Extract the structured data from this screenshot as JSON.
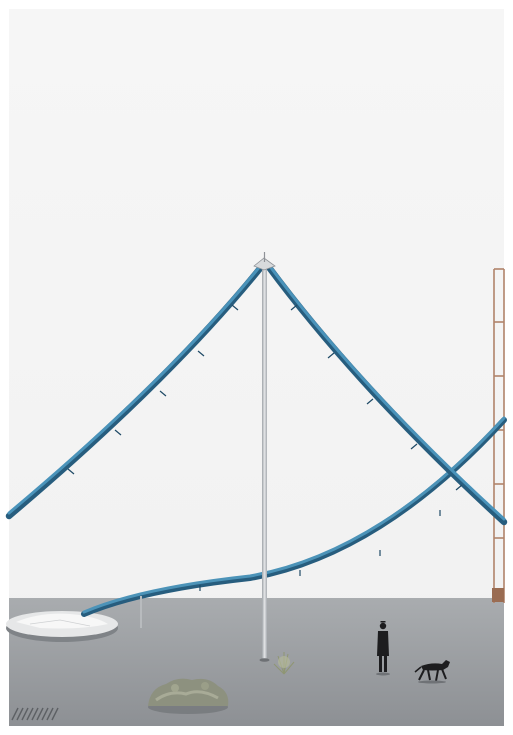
{
  "scene": {
    "subject": "architectural-model-photograph",
    "colors": {
      "backdrop": "#f3f3f3",
      "floor": "#9c9fa2",
      "ribbon": "#3b7fa6",
      "ribbon_dark": "#275d7e",
      "mast": "#c9ccd0",
      "frame": "#b0836a",
      "shrub": "#8d917f",
      "figure": "#1d1d1f",
      "disc": "#e8e9ea"
    }
  }
}
